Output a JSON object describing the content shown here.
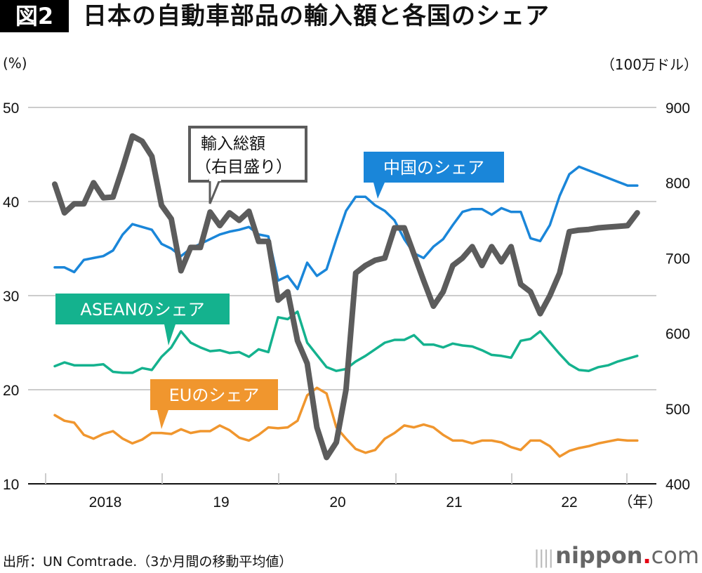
{
  "header": {
    "figure_badge": "図2",
    "title": "日本の自動車部品の輸入額と各国のシェア"
  },
  "footer": {
    "source": "出所：UN Comtrade.（3か月間の移動平均値）",
    "logo_main": "nippon",
    "logo_dot": ".",
    "logo_com": "com",
    "logo_bars": "||||"
  },
  "chart_data": {
    "type": "line",
    "title": "日本の自動車部品の輸入額と各国のシェア",
    "ylabel_left": "(%)",
    "ylabel_right": "（100万ドル）",
    "xlabel": "（年）",
    "ylim_left": [
      10,
      50
    ],
    "ylim_right": [
      400,
      900
    ],
    "yticks_left": [
      "50",
      "40",
      "30",
      "20",
      "10"
    ],
    "yticks_left_values": [
      50,
      40,
      30,
      20,
      10
    ],
    "yticks_right": [
      "900",
      "800",
      "700",
      "600",
      "500",
      "400"
    ],
    "yticks_right_values": [
      900,
      800,
      700,
      600,
      500,
      400
    ],
    "x_categories": [
      "2018",
      "19",
      "20",
      "21",
      "22"
    ],
    "x_unit_label": "（年）",
    "grid": true,
    "x_start": "2018-02",
    "x_step": "month",
    "series": [
      {
        "name": "中国のシェア",
        "axis": "left",
        "color": "#1a86d9",
        "label": "中国のシェア",
        "values": [
          33.0,
          33.0,
          32.5,
          33.8,
          34.0,
          34.2,
          34.8,
          36.5,
          37.6,
          37.3,
          37.0,
          35.5,
          35.0,
          34.2,
          35.0,
          35.5,
          36.0,
          36.5,
          36.8,
          37.0,
          37.3,
          36.5,
          36.3,
          31.6,
          32.1,
          30.7,
          33.5,
          32.1,
          32.8,
          36.0,
          39.0,
          40.5,
          40.5,
          39.6,
          39.0,
          38.0,
          36.0,
          34.5,
          34.0,
          35.2,
          36.0,
          37.5,
          38.9,
          39.2,
          39.2,
          38.6,
          39.3,
          38.9,
          38.9,
          36.1,
          35.8,
          37.5,
          40.6,
          42.9,
          43.7,
          43.3,
          42.9,
          42.5,
          42.1,
          41.7,
          41.7
        ]
      },
      {
        "name": "ASEANのシェア",
        "axis": "left",
        "color": "#14b28e",
        "label": "ASEANのシェア",
        "values": [
          22.5,
          22.9,
          22.6,
          22.6,
          22.6,
          22.7,
          21.9,
          21.8,
          21.8,
          22.3,
          22.1,
          23.5,
          24.5,
          26.2,
          25.0,
          24.5,
          24.1,
          24.2,
          23.9,
          24.0,
          23.5,
          24.3,
          24.0,
          27.7,
          27.5,
          28.3,
          25.0,
          23.7,
          22.4,
          22.0,
          22.2,
          23.0,
          23.6,
          24.3,
          25.0,
          25.3,
          25.3,
          25.8,
          24.8,
          24.8,
          24.5,
          24.9,
          24.7,
          24.6,
          24.2,
          23.7,
          23.6,
          23.4,
          25.2,
          25.4,
          26.2,
          25.0,
          23.8,
          22.7,
          22.1,
          22.0,
          22.4,
          22.6,
          23.0,
          23.3,
          23.6
        ]
      },
      {
        "name": "EUのシェア",
        "axis": "left",
        "color": "#f0962e",
        "label": "EUのシェア",
        "values": [
          17.3,
          16.7,
          16.5,
          15.2,
          14.8,
          15.3,
          15.6,
          14.8,
          14.3,
          14.7,
          15.4,
          15.4,
          15.3,
          15.8,
          15.4,
          15.6,
          15.6,
          16.2,
          15.7,
          14.9,
          14.6,
          15.2,
          16.0,
          15.9,
          16.0,
          16.7,
          19.4,
          20.2,
          19.6,
          16.0,
          14.8,
          13.7,
          13.3,
          13.6,
          14.8,
          15.4,
          16.2,
          16.0,
          16.3,
          16.0,
          15.2,
          14.6,
          14.6,
          14.3,
          14.6,
          14.6,
          14.4,
          13.9,
          13.6,
          14.6,
          14.6,
          14.0,
          12.9,
          13.5,
          13.8,
          14.0,
          14.3,
          14.5,
          14.7,
          14.6,
          14.6
        ]
      },
      {
        "name": "輸入総額（右目盛り）",
        "axis": "right",
        "color": "#5c5c5c",
        "label": "輸入総額\n（右目盛り）",
        "values": [
          798,
          760,
          772,
          772,
          800,
          780,
          781,
          820,
          862,
          855,
          835,
          770,
          752,
          683,
          714,
          714,
          761,
          743,
          760,
          750,
          762,
          722,
          722,
          644,
          655,
          590,
          560,
          475,
          435,
          455,
          525,
          680,
          690,
          697,
          700,
          740,
          740,
          705,
          670,
          636,
          655,
          690,
          700,
          715,
          690,
          715,
          695,
          715,
          665,
          655,
          626,
          650,
          680,
          735,
          737,
          738,
          740,
          741,
          742,
          743,
          760
        ]
      }
    ],
    "annotations": [
      {
        "text_lines": [
          "輸入総額",
          "（右目盛り）"
        ],
        "series": "輸入総額（右目盛り）",
        "style": "outlined-box"
      },
      {
        "text_lines": [
          "中国のシェア"
        ],
        "series": "中国のシェア",
        "style": "filled-box"
      },
      {
        "text_lines": [
          "ASEANのシェア"
        ],
        "series": "ASEANのシェア",
        "style": "filled-box"
      },
      {
        "text_lines": [
          "EUのシェア"
        ],
        "series": "EUのシェア",
        "style": "filled-box"
      }
    ]
  }
}
